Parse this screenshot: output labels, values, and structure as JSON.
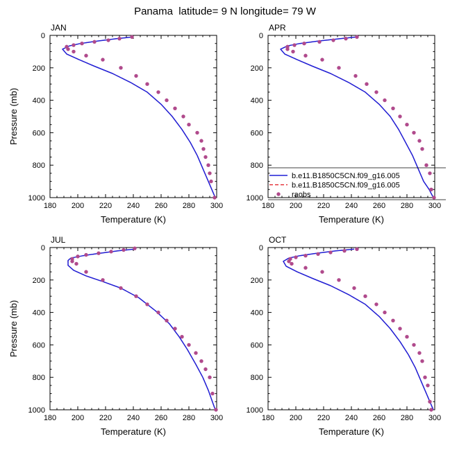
{
  "title": "Panama  latitude= 9 N longitude= 79 W",
  "colors": {
    "model_line": "#1f1fd6",
    "model_dashed": "#e0141e",
    "raobs_marker": "#b04a8c"
  },
  "legend": {
    "placement": "right of APR panel, near bottom",
    "entries": [
      {
        "label": "b.e11.B1850C5CN.f09_g16.005",
        "style": "solid-line",
        "color": "#1f1fd6"
      },
      {
        "label": "b.e11.B1850C5CN.f09_g16.005",
        "style": "dashed-line",
        "color": "#e0141e"
      },
      {
        "label": "raobs",
        "style": "marker",
        "color": "#b04a8c"
      }
    ]
  },
  "chart_data": [
    {
      "type": "line",
      "panel": "JAN",
      "xlabel": "Temperature (K)",
      "ylabel": "Pressure (mb)",
      "xlim": [
        180,
        300
      ],
      "ylim": [
        1000,
        0
      ],
      "y_inverted": true,
      "xticks": [
        180,
        200,
        220,
        240,
        260,
        280,
        300
      ],
      "yticks": [
        0,
        200,
        400,
        600,
        800,
        1000
      ],
      "series": [
        {
          "name": "b.e11.B1850C5CN.f09_g16.005",
          "style": "solid",
          "x": [
            240,
            228,
            214,
            202,
            194,
            189,
            192,
            201,
            212,
            225,
            238,
            250,
            260,
            268,
            275,
            281,
            286,
            290,
            294,
            296.5,
            299
          ],
          "y": [
            10,
            20,
            35,
            50,
            65,
            85,
            115,
            150,
            190,
            235,
            290,
            350,
            425,
            500,
            580,
            660,
            740,
            820,
            900,
            950,
            1000
          ]
        },
        {
          "name": "b.e11.B1850C5CN.f09_g16.005",
          "style": "dashed",
          "x": [
            240,
            228,
            214,
            202,
            194,
            189,
            192,
            201,
            212,
            225,
            238,
            250,
            260,
            268,
            275,
            281,
            286,
            290,
            294,
            296.5,
            299
          ],
          "y": [
            10,
            20,
            35,
            50,
            65,
            85,
            115,
            150,
            190,
            235,
            290,
            350,
            425,
            500,
            580,
            660,
            740,
            820,
            900,
            950,
            1000
          ]
        },
        {
          "name": "raobs",
          "style": "markers",
          "x": [
            239,
            230,
            222,
            212,
            203,
            197,
            192,
            193,
            197,
            206,
            218,
            231,
            242,
            250,
            258,
            264,
            270,
            276,
            280,
            286,
            289,
            290.5,
            292,
            294,
            295,
            296,
            298.5
          ],
          "y": [
            10,
            20,
            30,
            40,
            50,
            60,
            70,
            85,
            100,
            125,
            150,
            200,
            250,
            300,
            350,
            400,
            450,
            500,
            550,
            600,
            650,
            700,
            750,
            800,
            850,
            900,
            1000
          ]
        }
      ]
    },
    {
      "type": "line",
      "panel": "APR",
      "xlabel": "Temperature (K)",
      "ylabel": "",
      "xlim": [
        180,
        300
      ],
      "ylim": [
        1000,
        0
      ],
      "y_inverted": true,
      "xticks": [
        180,
        200,
        220,
        240,
        260,
        280,
        300
      ],
      "yticks": [
        0,
        200,
        400,
        600,
        800,
        1000
      ],
      "series": [
        {
          "name": "b.e11.B1850C5CN.f09_g16.005",
          "style": "solid",
          "x": [
            244,
            232,
            216,
            203,
            194,
            189,
            192,
            201,
            212,
            225,
            238,
            250,
            260,
            268,
            274,
            279,
            284,
            288,
            292,
            296,
            299
          ],
          "y": [
            10,
            20,
            35,
            50,
            65,
            85,
            115,
            150,
            190,
            235,
            290,
            350,
            425,
            500,
            580,
            660,
            740,
            820,
            900,
            950,
            1000
          ]
        },
        {
          "name": "b.e11.B1850C5CN.f09_g16.005",
          "style": "dashed",
          "x": [
            244,
            232,
            216,
            203,
            194,
            189,
            192,
            201,
            212,
            225,
            238,
            250,
            260,
            268,
            274,
            279,
            284,
            288,
            292,
            296,
            299
          ],
          "y": [
            10,
            20,
            35,
            50,
            65,
            85,
            115,
            150,
            190,
            235,
            290,
            350,
            425,
            500,
            580,
            660,
            740,
            820,
            900,
            950,
            1000
          ]
        },
        {
          "name": "raobs",
          "style": "markers",
          "x": [
            244,
            236,
            227,
            217,
            206,
            199,
            194,
            194,
            198,
            207,
            219,
            231,
            243,
            251,
            258,
            264,
            270,
            275,
            280,
            285,
            289,
            291,
            294,
            296.5,
            297.5,
            299.5
          ],
          "y": [
            10,
            20,
            30,
            40,
            50,
            60,
            70,
            85,
            100,
            125,
            150,
            200,
            250,
            300,
            350,
            400,
            450,
            500,
            550,
            600,
            650,
            700,
            800,
            850,
            950,
            1000
          ]
        }
      ]
    },
    {
      "type": "line",
      "panel": "JUL",
      "xlabel": "Temperature (K)",
      "ylabel": "Pressure (mb)",
      "xlim": [
        180,
        300
      ],
      "ylim": [
        1000,
        0
      ],
      "y_inverted": true,
      "xticks": [
        180,
        200,
        220,
        240,
        260,
        280,
        300
      ],
      "yticks": [
        0,
        200,
        400,
        600,
        800,
        1000
      ],
      "series": [
        {
          "name": "b.e11.B1850C5CN.f09_g16.005",
          "style": "solid",
          "x": [
            241,
            229,
            216,
            204,
            195,
            193,
            193,
            197,
            206,
            218,
            231,
            244,
            256,
            266,
            273,
            279,
            285,
            290,
            294,
            296.5,
            299
          ],
          "y": [
            10,
            20,
            35,
            50,
            65,
            80,
            110,
            140,
            175,
            210,
            250,
            310,
            390,
            470,
            550,
            630,
            720,
            800,
            880,
            940,
            1000
          ]
        },
        {
          "name": "b.e11.B1850C5CN.f09_g16.005",
          "style": "dashed",
          "x": [
            241,
            229,
            216,
            204,
            195,
            193,
            193,
            197,
            206,
            218,
            231,
            244,
            256,
            266,
            273,
            279,
            285,
            290,
            294,
            296.5,
            299
          ],
          "y": [
            10,
            20,
            35,
            50,
            65,
            80,
            110,
            140,
            175,
            210,
            250,
            310,
            390,
            470,
            550,
            630,
            720,
            800,
            880,
            940,
            1000
          ]
        },
        {
          "name": "raobs",
          "style": "markers",
          "x": [
            241,
            233,
            224,
            215,
            206,
            200,
            196,
            196,
            199,
            206,
            218,
            231,
            242,
            250,
            258,
            264,
            270,
            275,
            280,
            285,
            289,
            292,
            295,
            297,
            299.5
          ],
          "y": [
            5,
            15,
            25,
            35,
            45,
            55,
            70,
            85,
            100,
            150,
            200,
            250,
            300,
            350,
            400,
            450,
            500,
            550,
            600,
            650,
            700,
            750,
            800,
            900,
            1000
          ]
        }
      ]
    },
    {
      "type": "line",
      "panel": "OCT",
      "xlabel": "Temperature (K)",
      "ylabel": "",
      "xlim": [
        180,
        300
      ],
      "ylim": [
        1000,
        0
      ],
      "y_inverted": true,
      "xticks": [
        180,
        200,
        220,
        240,
        260,
        280,
        300
      ],
      "yticks": [
        0,
        200,
        400,
        600,
        800,
        1000
      ],
      "series": [
        {
          "name": "b.e11.B1850C5CN.f09_g16.005",
          "style": "solid",
          "x": [
            242,
            229,
            215,
            203,
            195,
            191,
            193,
            201,
            212,
            225,
            238,
            250,
            260,
            268,
            275,
            281,
            286,
            290,
            294,
            296.5,
            299
          ],
          "y": [
            10,
            20,
            35,
            50,
            65,
            85,
            115,
            150,
            190,
            235,
            290,
            350,
            425,
            500,
            580,
            660,
            740,
            820,
            900,
            950,
            1000
          ]
        },
        {
          "name": "b.e11.B1850C5CN.f09_g16.005",
          "style": "dashed",
          "x": [
            242,
            229,
            215,
            203,
            195,
            191,
            193,
            201,
            212,
            225,
            238,
            250,
            260,
            268,
            275,
            281,
            286,
            290,
            294,
            296.5,
            299
          ],
          "y": [
            10,
            20,
            35,
            50,
            65,
            85,
            115,
            150,
            190,
            235,
            290,
            350,
            425,
            500,
            580,
            660,
            740,
            820,
            900,
            950,
            1000
          ]
        },
        {
          "name": "raobs",
          "style": "markers",
          "x": [
            244,
            235,
            225,
            216,
            207,
            200,
            196,
            195,
            197,
            207,
            219,
            231,
            242,
            250,
            258,
            264,
            270,
            275,
            280,
            285,
            289,
            291,
            293,
            295,
            296.5,
            297.5
          ],
          "y": [
            10,
            20,
            30,
            40,
            50,
            60,
            70,
            85,
            100,
            125,
            150,
            200,
            250,
            300,
            350,
            400,
            450,
            500,
            550,
            600,
            650,
            700,
            800,
            850,
            950,
            1000
          ]
        }
      ]
    }
  ]
}
